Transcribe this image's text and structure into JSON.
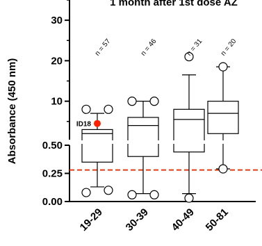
{
  "chart_data": {
    "type": "box",
    "title": "1 month after 1st dose AZ",
    "ylabel": "Absorbance (450 nm)",
    "xlabel": "",
    "y_axis": {
      "type": "segmented",
      "lower_segment": {
        "range": [
          0,
          0.5
        ],
        "ticks": [
          "0.00",
          "0.25",
          "0.50"
        ]
      },
      "upper_segment": {
        "range": [
          0.5,
          35
        ],
        "ticks": [
          "10",
          "20",
          "30"
        ]
      }
    },
    "grid": false,
    "categories": [
      "19-29",
      "30-39",
      "40-49",
      "50-81"
    ],
    "sample_sizes": [
      "n = 57",
      "n = 46",
      "n = 31",
      "n = 20"
    ],
    "boxes": [
      {
        "category": "19-29",
        "whisker_low": 0.13,
        "q1": 0.35,
        "median": 2.0,
        "q3": 3.0,
        "whisker_high": 7.0,
        "outliers": [
          0.08,
          0.1,
          8.0,
          8.0
        ]
      },
      {
        "category": "30-39",
        "whisker_low": 0.07,
        "q1": 0.4,
        "median": 4.0,
        "q3": 6.0,
        "whisker_high": 10.0,
        "outliers": [
          0.06,
          0.06,
          10.0,
          10.0
        ]
      },
      {
        "category": "40-49",
        "whisker_low": 0.07,
        "q1": 0.44,
        "median": 5.5,
        "q3": 8.0,
        "whisker_high": 16.5,
        "outliers": [
          0.03,
          21.0
        ]
      },
      {
        "category": "50-81",
        "whisker_low": 0.29,
        "q1": 2.0,
        "median": 7.0,
        "q3": 10.0,
        "whisker_high": 18.5,
        "outliers": [
          0.29,
          18.5
        ]
      }
    ],
    "highlight": {
      "label": "ID18",
      "category": "19-29",
      "value": 4.5,
      "color": "#ff2200"
    },
    "reference_line": {
      "value": 0.28,
      "color": "#e83a10",
      "style": "dashed"
    }
  }
}
